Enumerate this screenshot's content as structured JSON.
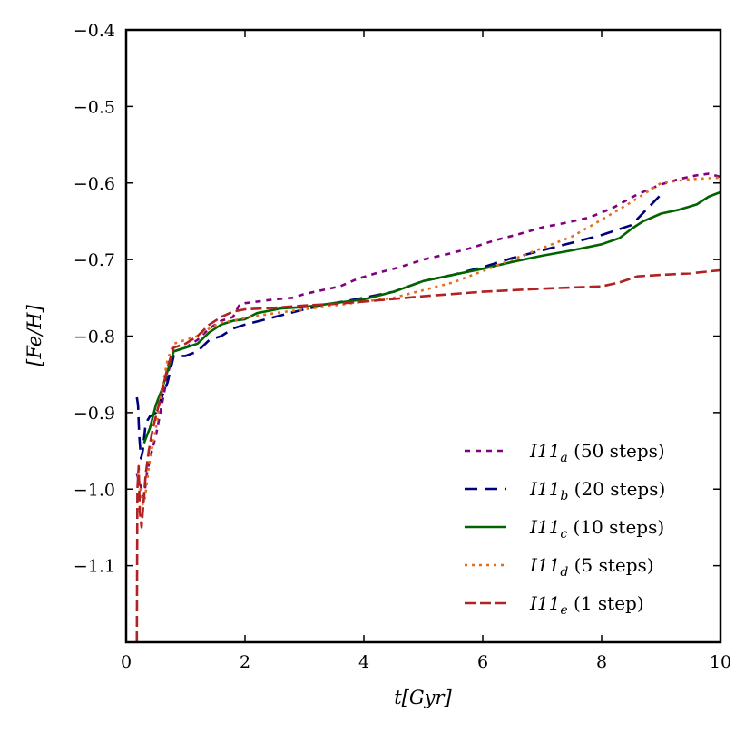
{
  "chart_data": {
    "type": "line",
    "title": "",
    "xlabel": "t[Gyr]",
    "ylabel": "[Fe/H]",
    "xlim": [
      0,
      10
    ],
    "ylim": [
      -1.2,
      -0.4
    ],
    "x_ticks": [
      0,
      2,
      4,
      6,
      8,
      10
    ],
    "x_tick_labels": [
      "0",
      "2",
      "4",
      "6",
      "8",
      "10"
    ],
    "y_ticks": [
      -1.1,
      -1.0,
      -0.9,
      -0.8,
      -0.7,
      -0.6,
      -0.5,
      -0.4
    ],
    "y_tick_labels": [
      "−1.1",
      "−1.0",
      "−0.9",
      "−0.8",
      "−0.7",
      "−0.6",
      "−0.5",
      "−0.4"
    ],
    "grid": false,
    "legend_position": "bottom-right",
    "series": [
      {
        "name": "I11a (50 steps)",
        "label": "I11",
        "sub": "a",
        "suffix": " (50 steps)",
        "color": "#800080",
        "dash": "6,6",
        "x": [
          0.18,
          0.22,
          0.26,
          0.3,
          0.35,
          0.4,
          0.5,
          0.6,
          0.7,
          0.8,
          1.0,
          1.2,
          1.4,
          1.6,
          1.8,
          1.9,
          2.0,
          2.2,
          2.5,
          2.8,
          3.0,
          3.3,
          3.6,
          3.9,
          4.2,
          4.6,
          5.0,
          5.4,
          5.8,
          6.2,
          6.6,
          7.0,
          7.4,
          7.8,
          8.2,
          8.6,
          9.0,
          9.3,
          9.6,
          9.8,
          10.0
        ],
        "y": [
          -0.98,
          -0.99,
          -1.0,
          -1.01,
          -0.98,
          -0.96,
          -0.93,
          -0.89,
          -0.85,
          -0.82,
          -0.815,
          -0.805,
          -0.79,
          -0.78,
          -0.775,
          -0.76,
          -0.757,
          -0.755,
          -0.752,
          -0.75,
          -0.745,
          -0.74,
          -0.735,
          -0.725,
          -0.718,
          -0.71,
          -0.7,
          -0.693,
          -0.685,
          -0.675,
          -0.667,
          -0.658,
          -0.652,
          -0.645,
          -0.632,
          -0.615,
          -0.602,
          -0.595,
          -0.59,
          -0.588,
          -0.592
        ]
      },
      {
        "name": "I11b (20 steps)",
        "label": "I11",
        "sub": "b",
        "suffix": " (20 steps)",
        "color": "#00007a",
        "dash": "14,8",
        "x": [
          0.18,
          0.2,
          0.22,
          0.25,
          0.28,
          0.32,
          0.36,
          0.4,
          0.5,
          0.6,
          0.7,
          0.8,
          1.0,
          1.2,
          1.4,
          1.6,
          1.8,
          2.0,
          2.5,
          3.0,
          3.5,
          4.0,
          4.5,
          5.0,
          5.5,
          6.0,
          6.5,
          7.0,
          7.5,
          8.0,
          8.5,
          9.0
        ],
        "y": [
          -0.88,
          -0.89,
          -0.93,
          -0.96,
          -0.95,
          -0.92,
          -0.91,
          -0.905,
          -0.9,
          -0.88,
          -0.86,
          -0.826,
          -0.826,
          -0.82,
          -0.805,
          -0.8,
          -0.79,
          -0.785,
          -0.775,
          -0.765,
          -0.757,
          -0.75,
          -0.742,
          -0.728,
          -0.72,
          -0.71,
          -0.698,
          -0.688,
          -0.678,
          -0.668,
          -0.655,
          -0.615
        ]
      },
      {
        "name": "I11c (10 steps)",
        "label": "I11",
        "sub": "c",
        "suffix": " (10 steps)",
        "color": "#006400",
        "dash": "",
        "x": [
          0.3,
          0.35,
          0.4,
          0.5,
          0.6,
          0.7,
          0.8,
          1.0,
          1.2,
          1.4,
          1.6,
          1.8,
          2.0,
          2.2,
          2.6,
          3.0,
          3.5,
          4.0,
          4.5,
          5.0,
          5.5,
          6.0,
          6.5,
          7.0,
          7.5,
          8.0,
          8.3,
          8.5,
          8.7,
          9.0,
          9.3,
          9.6,
          9.8,
          10.0
        ],
        "y": [
          -0.94,
          -0.93,
          -0.92,
          -0.89,
          -0.87,
          -0.845,
          -0.82,
          -0.815,
          -0.81,
          -0.795,
          -0.785,
          -0.78,
          -0.778,
          -0.77,
          -0.764,
          -0.762,
          -0.757,
          -0.752,
          -0.742,
          -0.728,
          -0.72,
          -0.712,
          -0.703,
          -0.695,
          -0.688,
          -0.68,
          -0.672,
          -0.66,
          -0.65,
          -0.64,
          -0.635,
          -0.628,
          -0.618,
          -0.612
        ]
      },
      {
        "name": "I11d (5 steps)",
        "label": "I11",
        "sub": "d",
        "suffix": " (5 steps)",
        "color": "#e07020",
        "dash": "3,5",
        "x": [
          0.2,
          0.24,
          0.28,
          0.32,
          0.4,
          0.5,
          0.6,
          0.7,
          0.8,
          1.0,
          1.2,
          1.4,
          1.6,
          1.8,
          2.0,
          2.5,
          3.0,
          3.5,
          4.0,
          4.5,
          5.0,
          5.5,
          6.0,
          6.5,
          7.0,
          7.5,
          8.0,
          8.5,
          9.0,
          9.5,
          10.0
        ],
        "y": [
          -0.98,
          -1.0,
          -1.02,
          -1.01,
          -0.96,
          -0.92,
          -0.87,
          -0.83,
          -0.81,
          -0.805,
          -0.8,
          -0.79,
          -0.782,
          -0.78,
          -0.776,
          -0.77,
          -0.765,
          -0.76,
          -0.755,
          -0.75,
          -0.74,
          -0.73,
          -0.715,
          -0.7,
          -0.685,
          -0.67,
          -0.648,
          -0.625,
          -0.6,
          -0.595,
          -0.593
        ]
      },
      {
        "name": "I11e (1 step)",
        "label": "I11",
        "sub": "e",
        "suffix": " (1 step)",
        "color": "#b22222",
        "dash": "12,5",
        "x": [
          0.18,
          0.19,
          0.21,
          0.23,
          0.26,
          0.29,
          0.33,
          0.38,
          0.45,
          0.55,
          0.7,
          0.8,
          1.0,
          1.2,
          1.4,
          1.6,
          1.8,
          2.0,
          2.5,
          3.0,
          3.5,
          4.0,
          5.0,
          6.0,
          7.0,
          8.0,
          8.3,
          8.6,
          9.0,
          9.5,
          10.0
        ],
        "y": [
          -1.2,
          -1.0,
          -0.97,
          -1.03,
          -1.05,
          -1.02,
          -0.98,
          -0.95,
          -0.92,
          -0.89,
          -0.84,
          -0.815,
          -0.81,
          -0.8,
          -0.785,
          -0.775,
          -0.768,
          -0.765,
          -0.763,
          -0.76,
          -0.758,
          -0.755,
          -0.748,
          -0.742,
          -0.738,
          -0.735,
          -0.73,
          -0.722,
          -0.72,
          -0.718,
          -0.714
        ]
      }
    ]
  }
}
